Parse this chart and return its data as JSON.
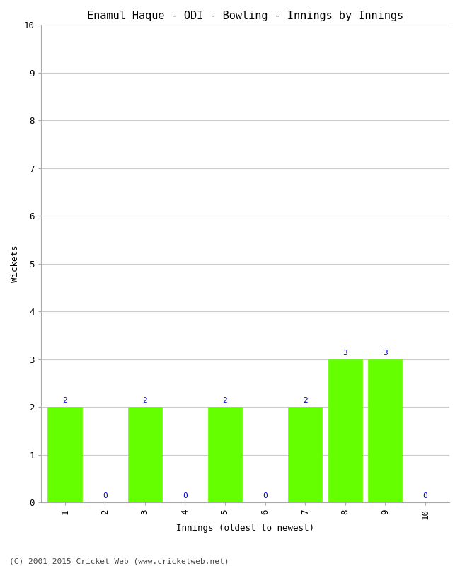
{
  "title": "Enamul Haque - ODI - Bowling - Innings by Innings",
  "xlabel": "Innings (oldest to newest)",
  "ylabel": "Wickets",
  "background_color": "#ffffff",
  "bar_color": "#66ff00",
  "label_color": "#0000cc",
  "innings": [
    1,
    2,
    3,
    4,
    5,
    6,
    7,
    8,
    9,
    10
  ],
  "wickets": [
    2,
    0,
    2,
    0,
    2,
    0,
    2,
    3,
    3,
    0
  ],
  "ylim": [
    0,
    10
  ],
  "yticks": [
    0,
    1,
    2,
    3,
    4,
    5,
    6,
    7,
    8,
    9,
    10
  ],
  "grid_color": "#cccccc",
  "footer": "(C) 2001-2015 Cricket Web (www.cricketweb.net)",
  "title_fontsize": 11,
  "axis_label_fontsize": 9,
  "tick_fontsize": 9,
  "bar_label_fontsize": 8,
  "bar_width": 0.85
}
